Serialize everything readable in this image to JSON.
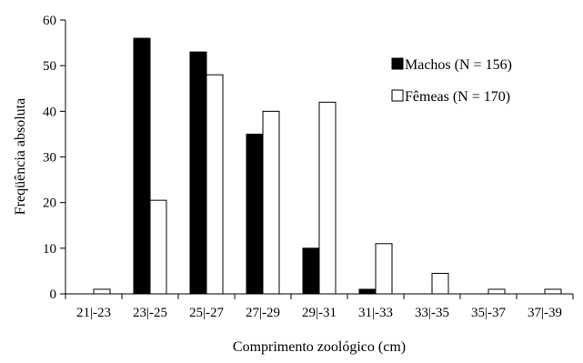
{
  "chart_data": {
    "type": "bar",
    "title": "",
    "xlabel": "Comprimento zoológico (cm)",
    "ylabel": "Freqüência absoluta",
    "ylim": [
      0,
      60
    ],
    "yticks": [
      "0",
      "10",
      "20",
      "30",
      "40",
      "50",
      "60"
    ],
    "categories": [
      "21|-23",
      "23|-25",
      "25|-27",
      "27|-29",
      "29|-31",
      "31|-33",
      "33|-35",
      "35|-37",
      "37|-39"
    ],
    "series": [
      {
        "name": "Machos (N = 156)",
        "color": "#000000",
        "values": [
          0,
          56,
          53,
          35,
          10,
          1,
          0,
          0,
          0
        ]
      },
      {
        "name": "Fêmeas (N = 170)",
        "color": "#ffffff",
        "values": [
          1,
          20.5,
          48,
          40,
          42,
          11,
          4.5,
          1,
          1
        ]
      }
    ],
    "grid": false,
    "legend_position": "top-right"
  }
}
